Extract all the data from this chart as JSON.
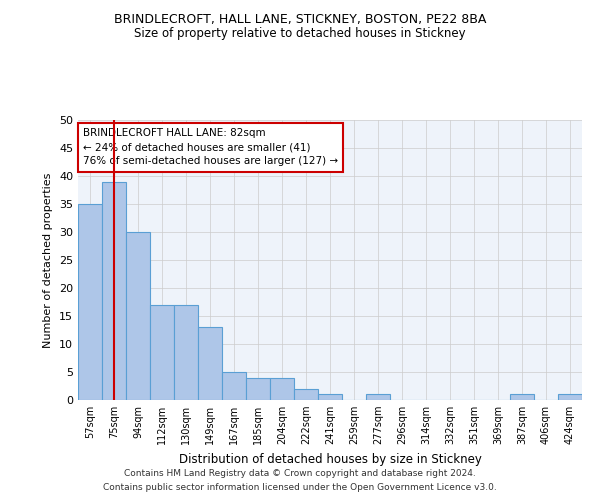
{
  "title1": "BRINDLECROFT, HALL LANE, STICKNEY, BOSTON, PE22 8BA",
  "title2": "Size of property relative to detached houses in Stickney",
  "xlabel": "Distribution of detached houses by size in Stickney",
  "ylabel": "Number of detached properties",
  "footnote1": "Contains HM Land Registry data © Crown copyright and database right 2024.",
  "footnote2": "Contains public sector information licensed under the Open Government Licence v3.0.",
  "annotation_title": "BRINDLECROFT HALL LANE: 82sqm",
  "annotation_line1": "← 24% of detached houses are smaller (41)",
  "annotation_line2": "76% of semi-detached houses are larger (127) →",
  "bin_labels": [
    "57sqm",
    "75sqm",
    "94sqm",
    "112sqm",
    "130sqm",
    "149sqm",
    "167sqm",
    "185sqm",
    "204sqm",
    "222sqm",
    "241sqm",
    "259sqm",
    "277sqm",
    "296sqm",
    "314sqm",
    "332sqm",
    "351sqm",
    "369sqm",
    "387sqm",
    "406sqm",
    "424sqm"
  ],
  "bin_values": [
    35,
    39,
    30,
    17,
    17,
    13,
    5,
    4,
    4,
    2,
    1,
    0,
    1,
    0,
    0,
    0,
    0,
    0,
    1,
    0,
    1
  ],
  "bar_color": "#aec6e8",
  "bar_edge_color": "#5a9fd4",
  "grid_color": "#cccccc",
  "vline_x": 1,
  "vline_color": "#cc0000",
  "annotation_box_color": "#cc0000",
  "ylim": [
    0,
    50
  ],
  "yticks": [
    0,
    5,
    10,
    15,
    20,
    25,
    30,
    35,
    40,
    45,
    50
  ],
  "background_color": "#eef3fa",
  "fig_background": "#ffffff"
}
